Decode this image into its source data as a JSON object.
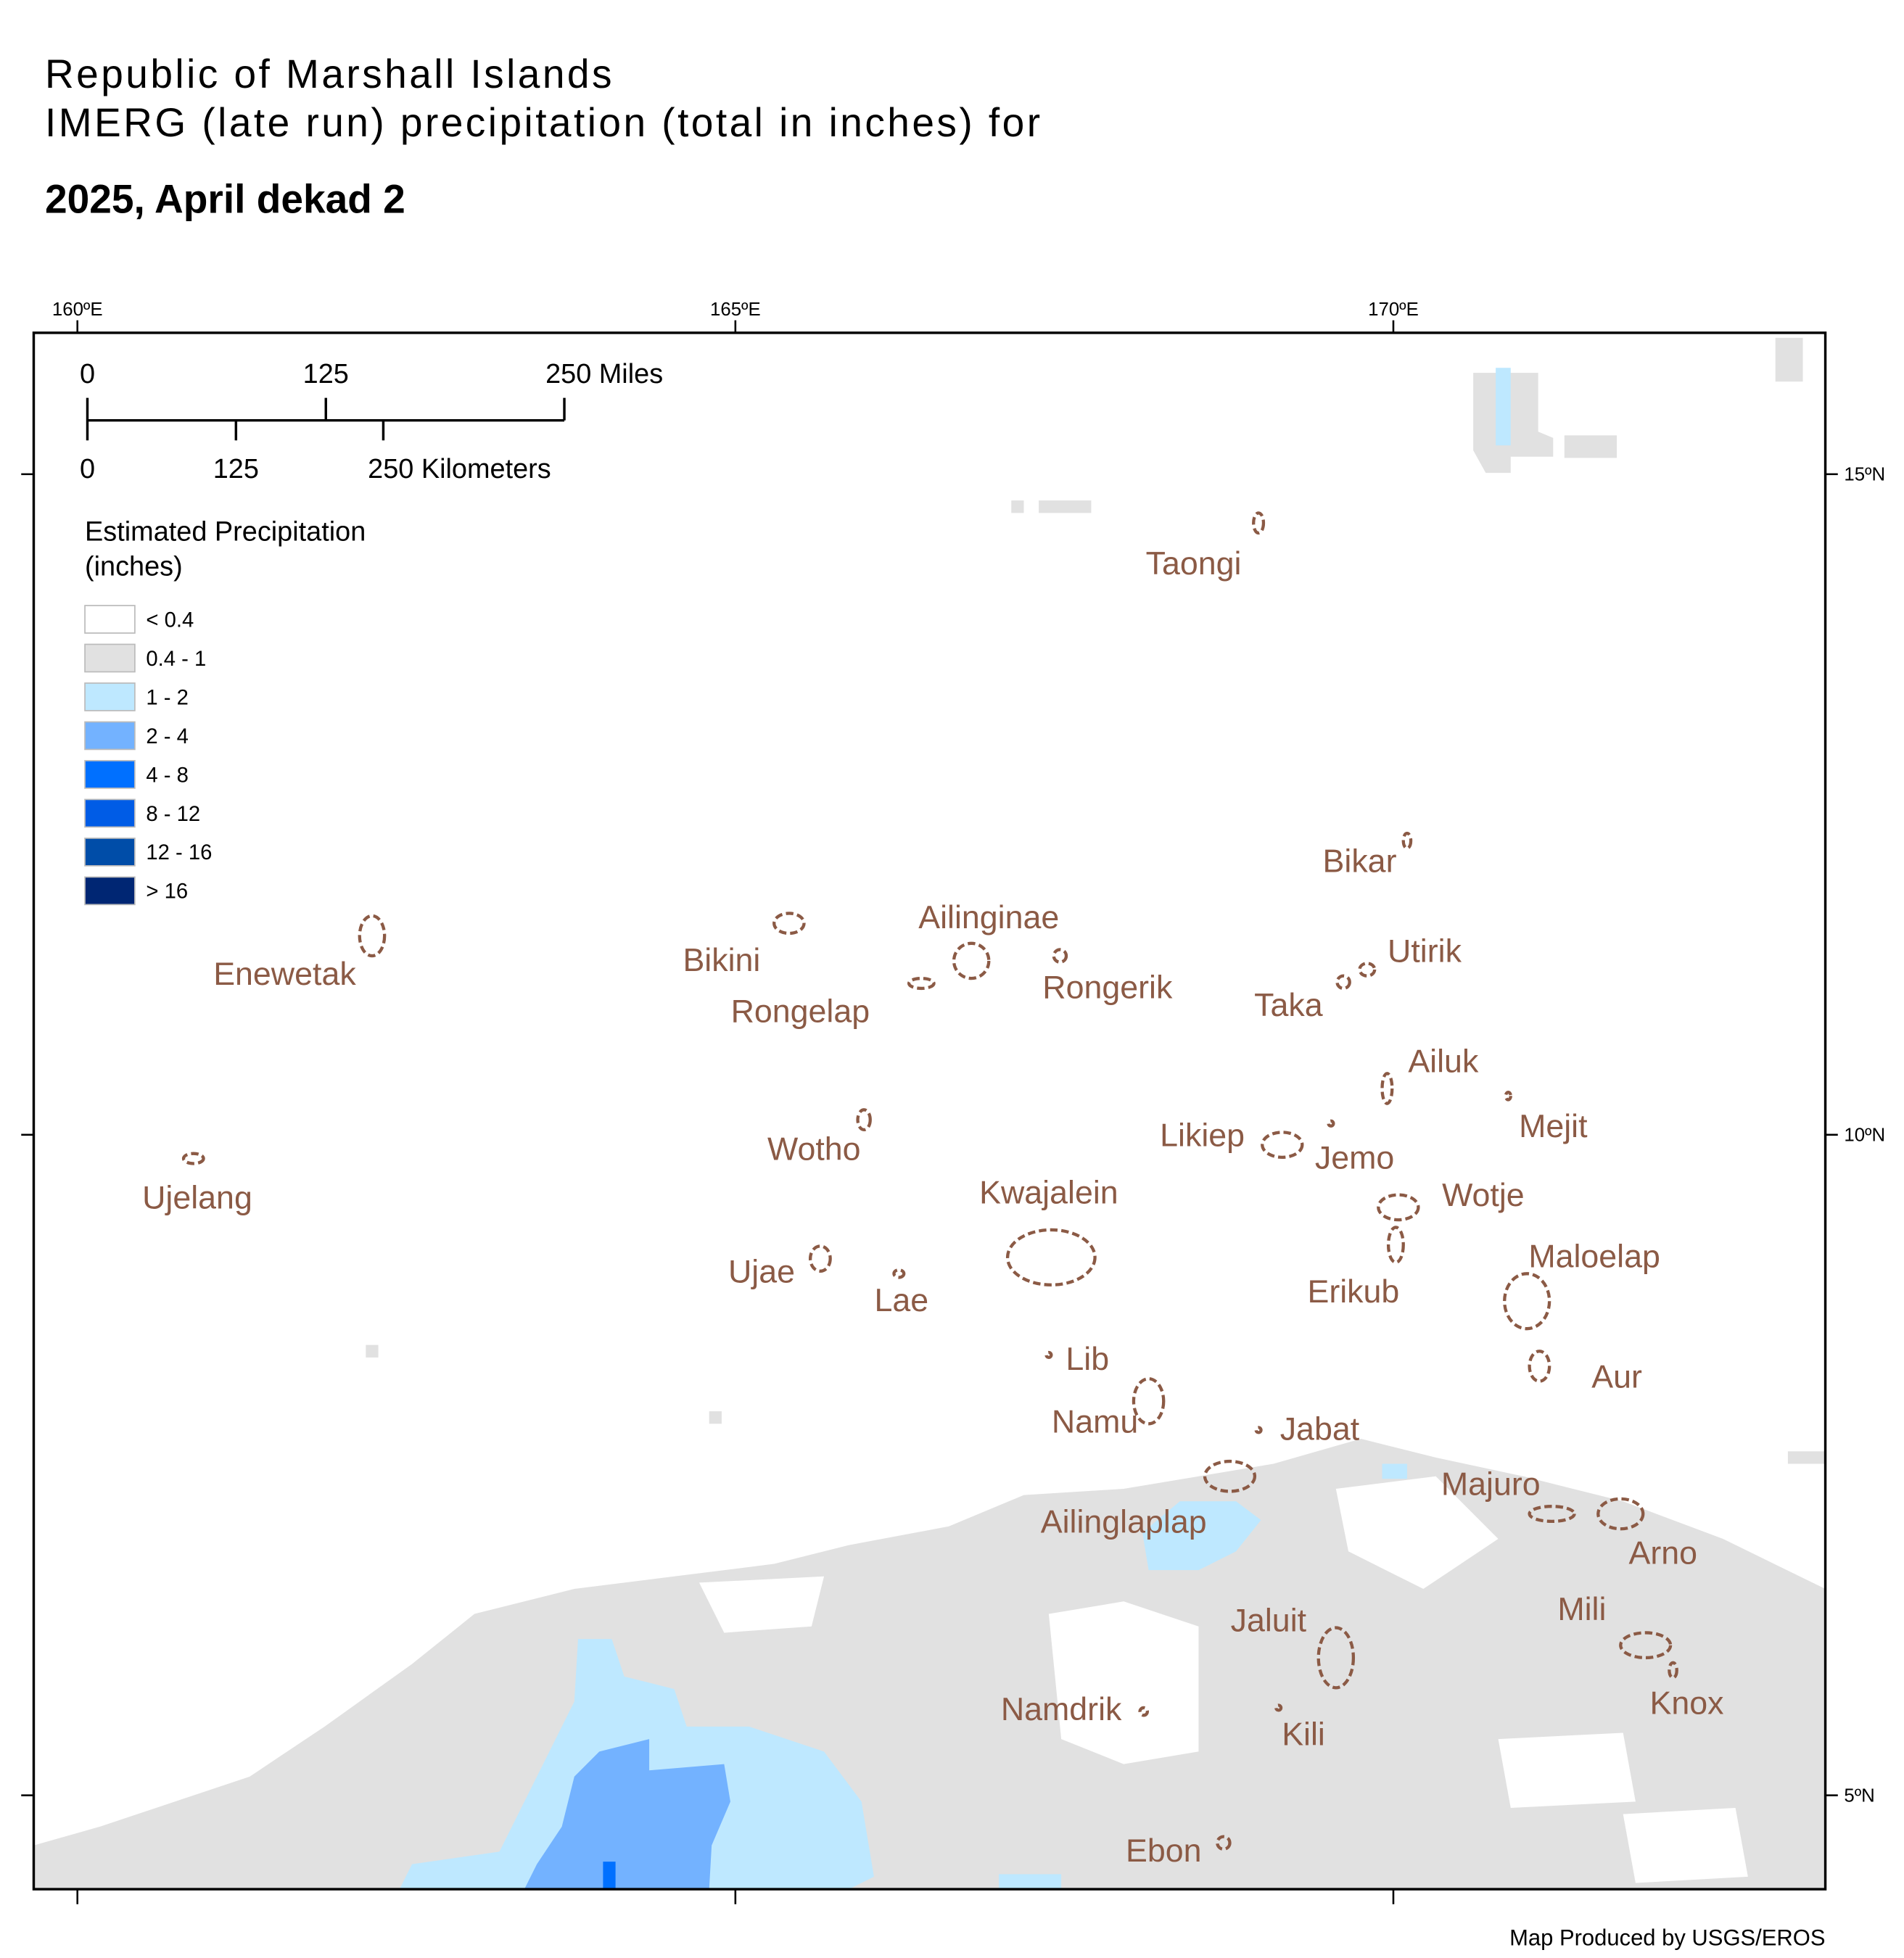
{
  "header": {
    "title_lines": [
      "Republic of Marshall Islands",
      "IMERG (late run) precipitation (total in inches) for"
    ],
    "period": "2025, April dekad 2"
  },
  "graticule": {
    "longitudes": [
      "160ºE",
      "165ºE",
      "170ºE"
    ],
    "latitudes": [
      "15ºN",
      "10ºN",
      "5ºN"
    ]
  },
  "scale_bar": {
    "miles": [
      "0",
      "125",
      "250 Miles"
    ],
    "kilometers": [
      "0",
      "125",
      "250 Kilometers"
    ]
  },
  "legend": {
    "title_lines": [
      "Estimated Precipitation",
      "(inches)"
    ],
    "items": [
      {
        "label": "< 0.4",
        "color": "#ffffff"
      },
      {
        "label": "0.4 - 1",
        "color": "#e1e1e1"
      },
      {
        "label": "1 - 2",
        "color": "#bee8ff"
      },
      {
        "label": "2 - 4",
        "color": "#73b2ff"
      },
      {
        "label": "4 - 8",
        "color": "#0070ff"
      },
      {
        "label": "8 - 12",
        "color": "#005ce6"
      },
      {
        "label": "12 - 16",
        "color": "#004da8"
      },
      {
        "label": "> 16",
        "color": "#002673"
      }
    ]
  },
  "islands": [
    "Taongi",
    "Bikar",
    "Ailinginae",
    "Utirik",
    "Bikini",
    "Enewetak",
    "Rongerik",
    "Taka",
    "Rongelap",
    "Ailuk",
    "Mejit",
    "Likiep",
    "Jemo",
    "Wotho",
    "Kwajalein",
    "Wotje",
    "Ujelang",
    "Maloelap",
    "Ujae",
    "Erikub",
    "Lae",
    "Lib",
    "Aur",
    "Namu",
    "Jabat",
    "Majuro",
    "Ailinglaplap",
    "Arno",
    "Mili",
    "Jaluit",
    "Namdrik",
    "Knox",
    "Kili",
    "Ebon"
  ],
  "credit": "Map Produced by USGS/EROS"
}
